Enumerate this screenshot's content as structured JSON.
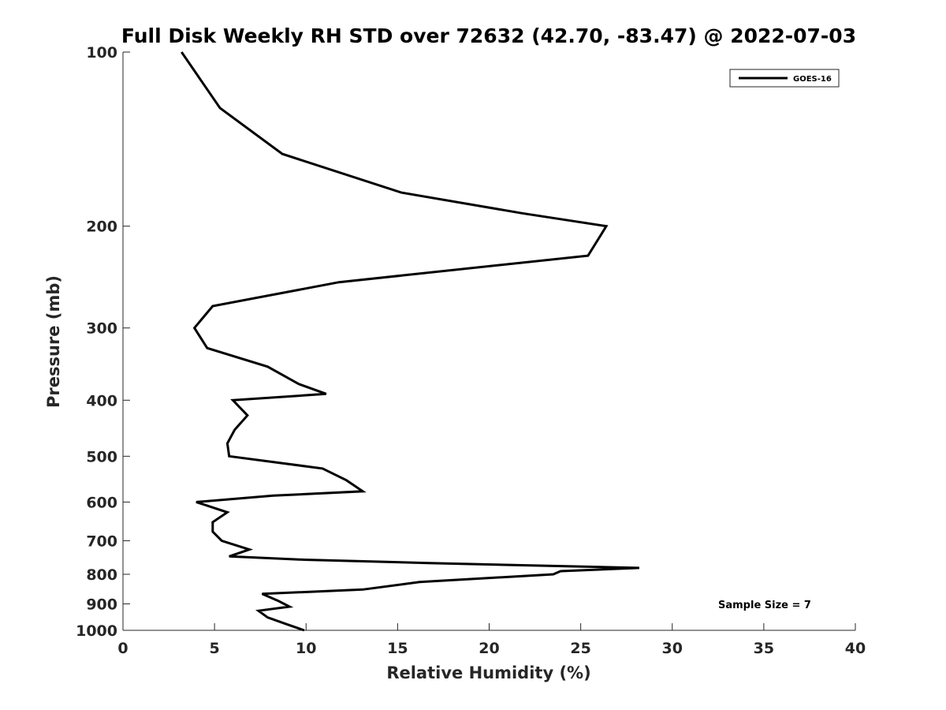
{
  "chart_data": {
    "type": "line",
    "title": "Full Disk Weekly RH STD over 72632 (42.70, -83.47) @ 2022-07-03",
    "xlabel": "Relative Humidity (%)",
    "ylabel": "Pressure (mb)",
    "xlim": [
      0,
      40
    ],
    "ylim": [
      100,
      1000
    ],
    "yscale": "log",
    "y_reversed": true,
    "x_ticks": [
      0,
      5,
      10,
      15,
      20,
      25,
      30,
      35,
      40
    ],
    "y_ticks": [
      100,
      200,
      300,
      400,
      500,
      600,
      700,
      800,
      900,
      1000
    ],
    "grid": false,
    "legend": {
      "location": "top-right",
      "entries": [
        "GOES-16"
      ]
    },
    "annotation": "Sample Size = 7",
    "series": [
      {
        "name": "GOES-16",
        "color": "#000000",
        "points": [
          [
            3.2,
            100
          ],
          [
            5.3,
            125
          ],
          [
            8.7,
            150
          ],
          [
            15.2,
            175
          ],
          [
            21.8,
            190
          ],
          [
            26.4,
            200
          ],
          [
            25.4,
            225
          ],
          [
            11.8,
            250
          ],
          [
            4.9,
            275
          ],
          [
            3.9,
            300
          ],
          [
            4.6,
            325
          ],
          [
            7.9,
            350
          ],
          [
            9.6,
            375
          ],
          [
            11.1,
            390
          ],
          [
            6.0,
            400
          ],
          [
            6.8,
            425
          ],
          [
            6.1,
            450
          ],
          [
            5.7,
            475
          ],
          [
            5.8,
            500
          ],
          [
            10.9,
            525
          ],
          [
            12.2,
            550
          ],
          [
            13.1,
            575
          ],
          [
            8.2,
            585
          ],
          [
            4.0,
            600
          ],
          [
            5.7,
            625
          ],
          [
            4.9,
            650
          ],
          [
            4.9,
            675
          ],
          [
            5.4,
            700
          ],
          [
            6.9,
            725
          ],
          [
            5.8,
            745
          ],
          [
            9.9,
            755
          ],
          [
            16.7,
            765
          ],
          [
            28.2,
            780
          ],
          [
            23.9,
            790
          ],
          [
            23.5,
            800
          ],
          [
            16.2,
            825
          ],
          [
            13.1,
            850
          ],
          [
            7.6,
            865
          ],
          [
            8.5,
            890
          ],
          [
            9.1,
            910
          ],
          [
            7.4,
            925
          ],
          [
            7.9,
            950
          ],
          [
            8.9,
            975
          ],
          [
            9.9,
            1000
          ]
        ]
      }
    ]
  }
}
